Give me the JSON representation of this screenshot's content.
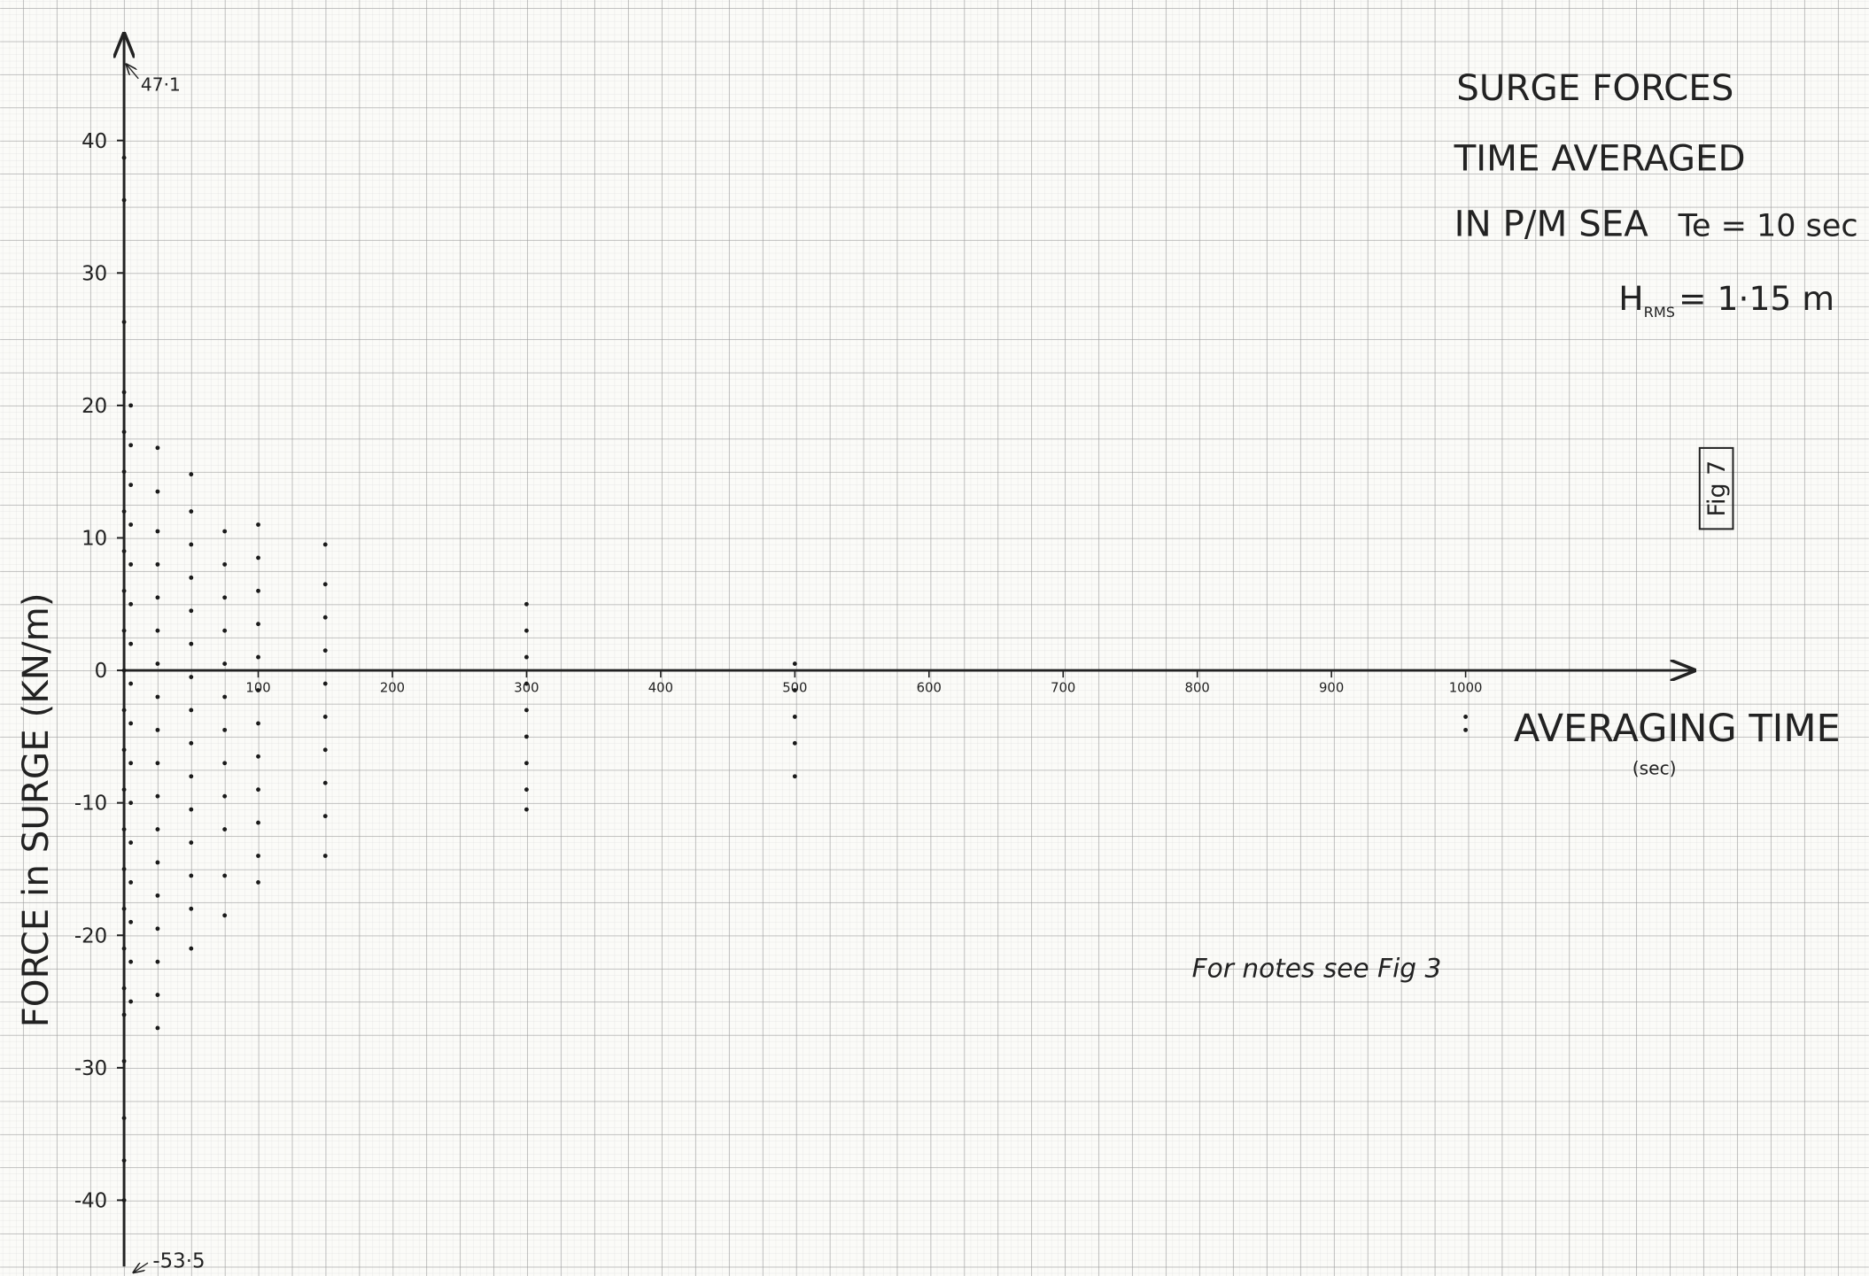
{
  "chart_data": {
    "type": "scatter",
    "title_lines": [
      "SURGE FORCES",
      "TIME AVERAGED",
      "IN P/M SEA"
    ],
    "wave_period": "Te = 10 sec",
    "wave_height": {
      "symbol": "H",
      "subscript": "RMS",
      "rest": "= 1·15 m"
    },
    "figure_label": "Fig 7",
    "note": "For notes see Fig 3",
    "x_label": "AVERAGING TIME",
    "x_unit": "(sec)",
    "y_label": "FORCE in SURGE (KN/m)",
    "annotations": [
      "47·1",
      "-53·5"
    ],
    "color": "#1a1a1a",
    "xlim": [
      0,
      1170
    ],
    "ylim": [
      -45,
      48
    ],
    "xticks": [
      100,
      200,
      300,
      400,
      500,
      600,
      700,
      800,
      900,
      1000
    ],
    "yticks": [
      40,
      30,
      20,
      10,
      0,
      -10,
      -20,
      -30,
      -40
    ],
    "grid": true,
    "x": [
      0,
      0,
      0,
      0,
      0,
      0,
      0,
      0,
      0,
      0,
      0,
      0,
      0,
      0,
      0,
      0,
      0,
      0,
      0,
      0,
      0,
      0,
      0,
      0,
      5,
      5,
      5,
      5,
      5,
      5,
      5,
      5,
      5,
      5,
      5,
      5,
      5,
      5,
      5,
      5,
      25,
      25,
      25,
      25,
      25,
      25,
      25,
      25,
      25,
      25,
      25,
      25,
      25,
      25,
      25,
      25,
      25,
      25,
      50,
      50,
      50,
      50,
      50,
      50,
      50,
      50,
      50,
      50,
      50,
      50,
      50,
      50,
      50,
      75,
      75,
      75,
      75,
      75,
      75,
      75,
      75,
      75,
      75,
      75,
      75,
      100,
      100,
      100,
      100,
      100,
      100,
      100,
      100,
      100,
      100,
      100,
      100,
      150,
      150,
      150,
      150,
      150,
      150,
      150,
      150,
      150,
      150,
      300,
      300,
      300,
      300,
      300,
      300,
      300,
      300,
      300,
      500,
      500,
      500,
      500,
      500,
      1000,
      1000
    ],
    "values": [
      38.7,
      35.5,
      26.3,
      21,
      18,
      15,
      12,
      9,
      6,
      3,
      0,
      -3,
      -6,
      -9,
      -12,
      -15,
      -18,
      -21,
      -24,
      -26,
      -29.5,
      -33.8,
      -37,
      -40,
      20,
      17,
      14,
      11,
      8,
      5,
      2,
      -1,
      -4,
      -7,
      -10,
      -13,
      -16,
      -19,
      -22,
      -25,
      16.8,
      13.5,
      10.5,
      8,
      5.5,
      3,
      0.5,
      -2,
      -4.5,
      -7,
      -9.5,
      -12,
      -14.5,
      -17,
      -19.5,
      -22,
      -24.5,
      -27,
      14.8,
      12,
      9.5,
      7,
      4.5,
      2,
      -0.5,
      -3,
      -5.5,
      -8,
      -10.5,
      -13,
      -15.5,
      -18,
      -21,
      10.5,
      8,
      5.5,
      3,
      0.5,
      -2,
      -4.5,
      -7,
      -9.5,
      -12,
      -15.5,
      -18.5,
      11,
      8.5,
      6,
      3.5,
      1,
      -1.5,
      -4,
      -6.5,
      -9,
      -11.5,
      -14,
      -16,
      9.5,
      6.5,
      4,
      1.5,
      -1,
      -3.5,
      -6,
      -8.5,
      -11,
      -14,
      5,
      3,
      1,
      -1,
      -3,
      -5,
      -7,
      -9,
      -10.5,
      0.5,
      -1.5,
      -3.5,
      -5.5,
      -8,
      -3.5,
      -4.5
    ]
  }
}
